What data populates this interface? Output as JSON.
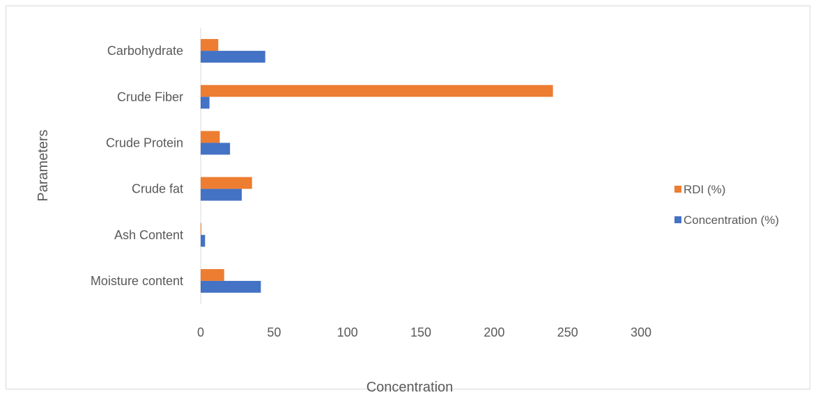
{
  "chart_data": {
    "type": "bar",
    "orientation": "horizontal",
    "title": "",
    "xlabel": "Concentration",
    "ylabel": "Parameters",
    "xlim": [
      0,
      300
    ],
    "xticks": [
      "0",
      "50",
      "100",
      "150",
      "200",
      "250",
      "300"
    ],
    "xtick_values": [
      0,
      50,
      100,
      150,
      200,
      250,
      300
    ],
    "categories": [
      "Carbohydrate",
      "Crude Fiber",
      "Crude Protein",
      "Crude fat",
      "Ash Content",
      "Moisture content"
    ],
    "series": [
      {
        "name": "RDI (%)",
        "color": "#ED7D31",
        "values": [
          12,
          240,
          13,
          35,
          0.5,
          16
        ]
      },
      {
        "name": "Concentration (%)",
        "color": "#4472C4",
        "values": [
          44,
          6,
          20,
          28,
          3,
          41
        ]
      }
    ],
    "grid": false,
    "legend": "right",
    "legend_items": [
      {
        "label": "RDI (%)",
        "color": "#ED7D31"
      },
      {
        "label": "Concentration (%)",
        "color": "#4472C4"
      }
    ]
  }
}
